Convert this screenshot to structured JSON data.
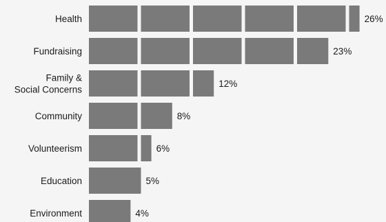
{
  "chart_data": {
    "type": "bar",
    "orientation": "horizontal",
    "categories": [
      "Health",
      "Fundraising",
      "Family & Social Concerns",
      "Community",
      "Volunteerism",
      "Education",
      "Environment"
    ],
    "values": [
      26,
      23,
      12,
      8,
      6,
      5,
      4
    ],
    "value_labels": [
      "26%",
      "23%",
      "12%",
      "8%",
      "6%",
      "5%",
      "4%"
    ],
    "unit": "%",
    "segment_size": 5,
    "bar_color": "#7a7a7a",
    "segment_gap_color": "#f5f5f5",
    "background": "#f5f5f5",
    "title": "",
    "xlabel": "",
    "ylabel": "",
    "grid": false,
    "legend": "none"
  }
}
